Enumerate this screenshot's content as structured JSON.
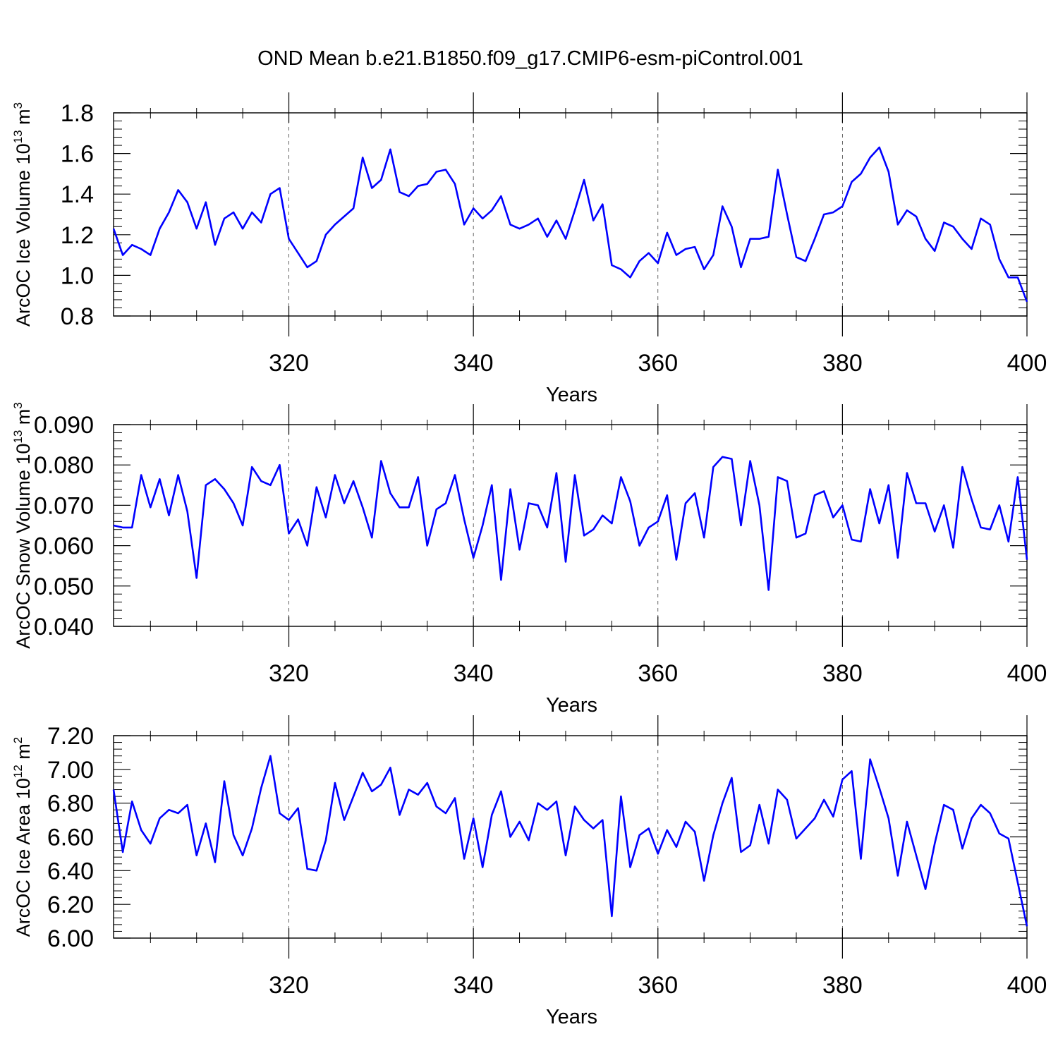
{
  "chart_data": {
    "type": "line",
    "title": "OND Mean b.e21.B1850.f09_g17.CMIP6-esm-piControl.001",
    "line_color": "#0000FF",
    "x_start": 301,
    "x_end": 400,
    "xlim": [
      301,
      400
    ],
    "x_ticks": [
      320,
      340,
      360,
      380,
      400
    ],
    "x_tick_labels": [
      "320",
      "340",
      "360",
      "380",
      "400"
    ],
    "gridlines": "dashed vertical at major x ticks",
    "panels": [
      {
        "ylabel_parts": [
          "ArcOC Ice Volume 10",
          "13",
          " m",
          "3"
        ],
        "xlabel": "Years",
        "ylim": [
          0.8,
          1.8
        ],
        "y_ticks": [
          0.8,
          1.0,
          1.2,
          1.4,
          1.6,
          1.8
        ],
        "y_tick_labels": [
          "0.8",
          "1.0",
          "1.2",
          "1.4",
          "1.6",
          "1.8"
        ],
        "series": [
          {
            "name": "ArcOC Ice Volume",
            "values": [
              1.23,
              1.1,
              1.15,
              1.13,
              1.1,
              1.23,
              1.31,
              1.42,
              1.36,
              1.23,
              1.36,
              1.15,
              1.28,
              1.31,
              1.23,
              1.31,
              1.26,
              1.4,
              1.43,
              1.18,
              1.11,
              1.04,
              1.07,
              1.2,
              1.25,
              1.29,
              1.33,
              1.58,
              1.43,
              1.47,
              1.62,
              1.41,
              1.39,
              1.44,
              1.45,
              1.51,
              1.52,
              1.45,
              1.25,
              1.33,
              1.28,
              1.32,
              1.39,
              1.25,
              1.23,
              1.25,
              1.28,
              1.19,
              1.27,
              1.18,
              1.32,
              1.47,
              1.27,
              1.35,
              1.05,
              1.03,
              0.99,
              1.07,
              1.11,
              1.06,
              1.21,
              1.1,
              1.13,
              1.14,
              1.03,
              1.1,
              1.34,
              1.24,
              1.04,
              1.18,
              1.18,
              1.19,
              1.52,
              1.3,
              1.09,
              1.07,
              1.18,
              1.3,
              1.31,
              1.34,
              1.46,
              1.5,
              1.58,
              1.63,
              1.51,
              1.25,
              1.32,
              1.29,
              1.18,
              1.12,
              1.26,
              1.24,
              1.18,
              1.13,
              1.28,
              1.25,
              1.08,
              0.99,
              0.99,
              0.87
            ]
          }
        ]
      },
      {
        "ylabel_parts": [
          "ArcOC Snow Volume 10",
          "13",
          " m",
          "3"
        ],
        "xlabel": "Years",
        "ylim": [
          0.04,
          0.09
        ],
        "y_ticks": [
          0.04,
          0.05,
          0.06,
          0.07,
          0.08,
          0.09
        ],
        "y_tick_labels": [
          "0.040",
          "0.050",
          "0.060",
          "0.070",
          "0.080",
          "0.090"
        ],
        "series": [
          {
            "name": "ArcOC Snow Volume",
            "values": [
              0.065,
              0.0645,
              0.0645,
              0.0775,
              0.0695,
              0.0765,
              0.0675,
              0.0775,
              0.0685,
              0.052,
              0.075,
              0.0765,
              0.074,
              0.0705,
              0.065,
              0.0795,
              0.076,
              0.075,
              0.08,
              0.063,
              0.0665,
              0.06,
              0.0745,
              0.067,
              0.0775,
              0.0705,
              0.076,
              0.0695,
              0.062,
              0.081,
              0.073,
              0.0695,
              0.0695,
              0.077,
              0.06,
              0.069,
              0.0705,
              0.0775,
              0.0665,
              0.057,
              0.065,
              0.075,
              0.0515,
              0.074,
              0.059,
              0.0705,
              0.07,
              0.0645,
              0.078,
              0.056,
              0.0775,
              0.0625,
              0.064,
              0.0675,
              0.0655,
              0.077,
              0.071,
              0.06,
              0.0645,
              0.066,
              0.0725,
              0.0565,
              0.0705,
              0.073,
              0.062,
              0.0795,
              0.082,
              0.0815,
              0.065,
              0.081,
              0.07,
              0.049,
              0.077,
              0.076,
              0.062,
              0.063,
              0.0725,
              0.0735,
              0.067,
              0.07,
              0.0615,
              0.061,
              0.074,
              0.0655,
              0.075,
              0.057,
              0.078,
              0.0705,
              0.0705,
              0.0635,
              0.07,
              0.0595,
              0.0795,
              0.0715,
              0.0645,
              0.064,
              0.07,
              0.061,
              0.077,
              0.0565
            ]
          }
        ]
      },
      {
        "ylabel_parts": [
          "ArcOC Ice Area 10",
          "12",
          " m",
          "2"
        ],
        "xlabel": "Years",
        "ylim": [
          6.0,
          7.2
        ],
        "y_ticks": [
          6.0,
          6.2,
          6.4,
          6.6,
          6.8,
          7.0,
          7.2
        ],
        "y_tick_labels": [
          "6.00",
          "6.20",
          "6.40",
          "6.60",
          "6.80",
          "7.00",
          "7.20"
        ],
        "series": [
          {
            "name": "ArcOC Ice Area",
            "values": [
              6.88,
              6.51,
              6.81,
              6.64,
              6.56,
              6.71,
              6.76,
              6.74,
              6.79,
              6.49,
              6.68,
              6.45,
              6.93,
              6.61,
              6.49,
              6.65,
              6.89,
              7.08,
              6.74,
              6.7,
              6.77,
              6.41,
              6.4,
              6.58,
              6.92,
              6.7,
              6.84,
              6.98,
              6.87,
              6.91,
              7.01,
              6.73,
              6.88,
              6.85,
              6.92,
              6.78,
              6.74,
              6.83,
              6.47,
              6.71,
              6.42,
              6.73,
              6.87,
              6.6,
              6.69,
              6.58,
              6.8,
              6.76,
              6.81,
              6.49,
              6.78,
              6.7,
              6.65,
              6.7,
              6.13,
              6.84,
              6.42,
              6.61,
              6.65,
              6.5,
              6.64,
              6.54,
              6.69,
              6.63,
              6.34,
              6.61,
              6.8,
              6.95,
              6.51,
              6.55,
              6.79,
              6.56,
              6.88,
              6.82,
              6.59,
              6.65,
              6.71,
              6.82,
              6.72,
              6.94,
              6.99,
              6.47,
              7.06,
              6.89,
              6.71,
              6.37,
              6.69,
              6.49,
              6.29,
              6.56,
              6.79,
              6.76,
              6.53,
              6.71,
              6.79,
              6.74,
              6.62,
              6.59,
              6.33,
              6.07
            ]
          }
        ]
      }
    ]
  }
}
